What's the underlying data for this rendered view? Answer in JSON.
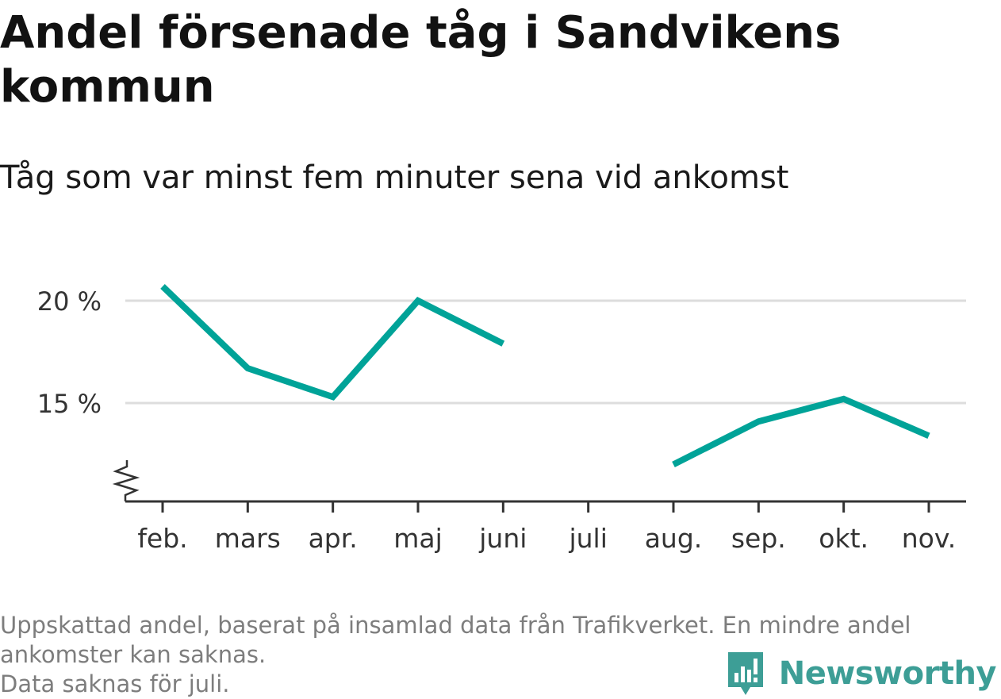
{
  "title": "Andel försenade tåg i Sandvikens kommun",
  "subtitle": "Tåg som var minst fem minuter sena vid ankomst",
  "footnote": {
    "line1": "Uppskattad andel, baserat på insamlad data från Trafikverket. En mindre andel",
    "line2": "ankomster kan saknas.",
    "line3": "Data saknas för juli."
  },
  "brand": {
    "name": "Newsworthy",
    "color": "#3d9e96",
    "logo_icon": "bar-chart-speech-bubble-icon"
  },
  "colors": {
    "line": "#00a398",
    "grid": "#dddddd",
    "axis": "#333333",
    "tick_label": "#333333"
  },
  "chart_data": {
    "type": "line",
    "title": "Andel försenade tåg i Sandvikens kommun",
    "subtitle": "Tåg som var minst fem minuter sena vid ankomst",
    "categories": [
      "feb.",
      "mars",
      "apr.",
      "maj",
      "juni",
      "juli",
      "aug.",
      "sep.",
      "okt.",
      "nov."
    ],
    "series": [
      {
        "values": [
          20.7,
          16.7,
          15.3,
          20.0,
          17.9,
          null,
          12.0,
          14.1,
          15.2,
          13.4
        ]
      }
    ],
    "y_ticks": [
      15,
      20
    ],
    "y_tick_labels": [
      "15 %",
      "20 %"
    ],
    "y_unit": "%",
    "ylim": [
      10.2,
      20.6
    ],
    "y_axis_broken": true,
    "grid": true,
    "legend": "none"
  }
}
